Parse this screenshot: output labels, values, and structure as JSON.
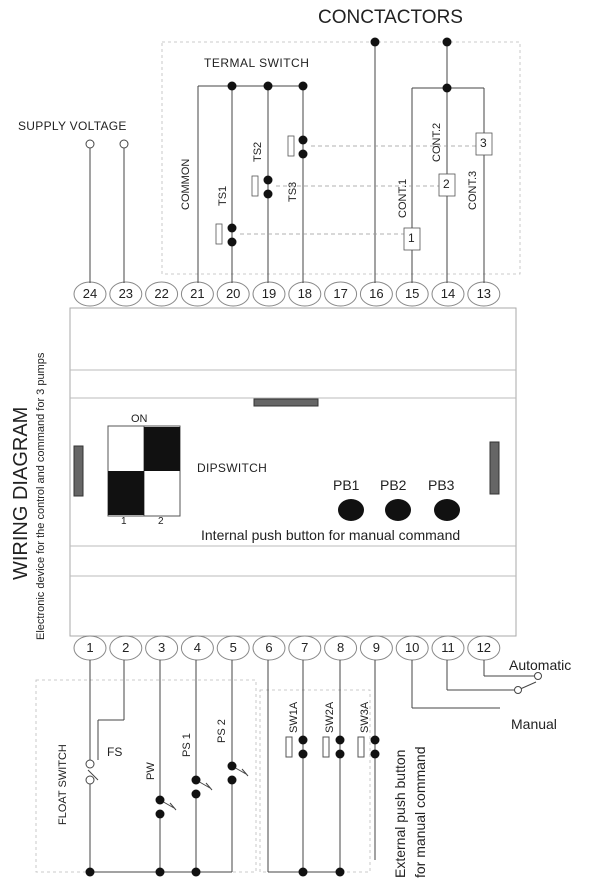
{
  "labels": {
    "contactors": "CONCTACTORS",
    "termal_switch": "TERMAL SWITCH",
    "supply_voltage": "SUPPLY VOLTAGE",
    "common": "COMMON",
    "ts1": "TS1",
    "ts2": "TS2",
    "ts3": "TS3",
    "cont1": "CONT.1",
    "cont2": "CONT.2",
    "cont3": "CONT.3",
    "cont_num_1": "1",
    "cont_num_2": "2",
    "cont_num_3": "3",
    "on": "ON",
    "dip_1": "1",
    "dip_2": "2",
    "dipswitch": "DIPSWITCH",
    "pb1": "PB1",
    "pb2": "PB2",
    "pb3": "PB3",
    "internal_pb": "Internal push button for manual command",
    "wiring_diagram": "WIRING DIAGRAM",
    "device_desc": "Electronic device for the control and command for 3 pumps",
    "automatic": "Automatic",
    "manual": "Manual",
    "float_switch": "FLOAT SWITCH",
    "fs": "FS",
    "pw": "PW",
    "ps1": "PS 1",
    "ps2": "PS 2",
    "sw1a": "SW1A",
    "sw2a": "SW2A",
    "sw3a": "SW3A",
    "external_pb_1": "External push button",
    "external_pb_2": "for manual command"
  },
  "top_terminals": [
    "24",
    "23",
    "22",
    "21",
    "20",
    "19",
    "18",
    "17",
    "16",
    "15",
    "14",
    "13"
  ],
  "bottom_terminals": [
    "1",
    "2",
    "3",
    "4",
    "5",
    "6",
    "7",
    "8",
    "9",
    "10",
    "11",
    "12"
  ]
}
